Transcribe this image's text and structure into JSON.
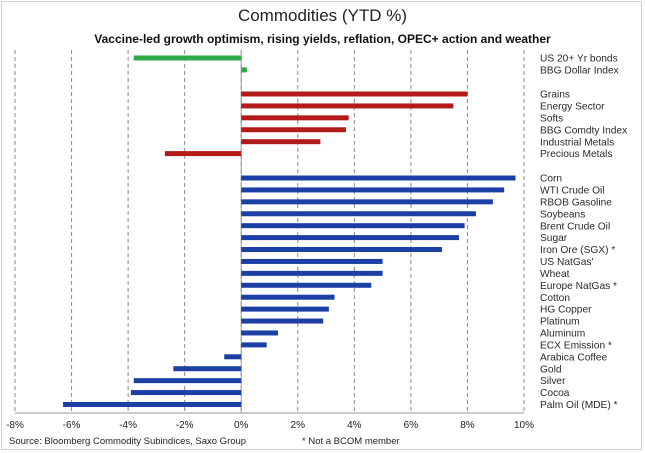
{
  "chart_data": {
    "type": "bar",
    "orientation": "horizontal",
    "title": "Commodities (YTD %)",
    "subtitle": "Vaccine-led growth optimism, rising yields, reflation, OPEC+ action and weather",
    "xlim": [
      -8,
      10
    ],
    "x_ticks": [
      "-8%",
      "-6%",
      "-4%",
      "-2%",
      "0%",
      "2%",
      "4%",
      "6%",
      "8%",
      "10%"
    ],
    "grid": "vertical",
    "groups": [
      {
        "color": "#2eaa4a",
        "items": [
          {
            "label": "US 20+ Yr bonds",
            "value": -3.8
          },
          {
            "label": "BBG Dollar Index",
            "value": 0.2
          }
        ]
      },
      {
        "color": "#b31b1b",
        "items": [
          {
            "label": "Grains",
            "value": 8.0
          },
          {
            "label": "Energy Sector",
            "value": 7.5
          },
          {
            "label": "Softs",
            "value": 3.8
          },
          {
            "label": "BBG Comdty Index",
            "value": 3.7
          },
          {
            "label": "Industrial Metals",
            "value": 2.8
          },
          {
            "label": "Precious Metals",
            "value": -2.7
          }
        ]
      },
      {
        "color": "#1c3fa6",
        "items": [
          {
            "label": "Corn",
            "value": 9.7
          },
          {
            "label": "WTI Crude Oil",
            "value": 9.3
          },
          {
            "label": "RBOB Gasoline",
            "value": 8.9
          },
          {
            "label": "Soybeans",
            "value": 8.3
          },
          {
            "label": "Brent Crude Oil",
            "value": 7.9
          },
          {
            "label": "Sugar",
            "value": 7.7
          },
          {
            "label": "Iron Ore (SGX) *",
            "value": 7.1
          },
          {
            "label": "US NatGas'",
            "value": 5.0
          },
          {
            "label": "Wheat",
            "value": 5.0
          },
          {
            "label": "Europe NatGas *",
            "value": 4.6
          },
          {
            "label": "Cotton",
            "value": 3.3
          },
          {
            "label": "HG Copper",
            "value": 3.1
          },
          {
            "label": "Platinum",
            "value": 2.9
          },
          {
            "label": "Aluminum",
            "value": 1.3
          },
          {
            "label": "ECX Emission *",
            "value": 0.9
          },
          {
            "label": "Arabica Coffee",
            "value": -0.6
          },
          {
            "label": "Gold",
            "value": -2.4
          },
          {
            "label": "Silver",
            "value": -3.8
          },
          {
            "label": "Cocoa",
            "value": -3.9
          },
          {
            "label": "Palm Oil (MDE) *",
            "value": -6.3
          }
        ]
      }
    ]
  },
  "footer": {
    "source": "Source: Bloomberg Commodity Subindices, Saxo Group",
    "note": "* Not a BCOM member"
  }
}
